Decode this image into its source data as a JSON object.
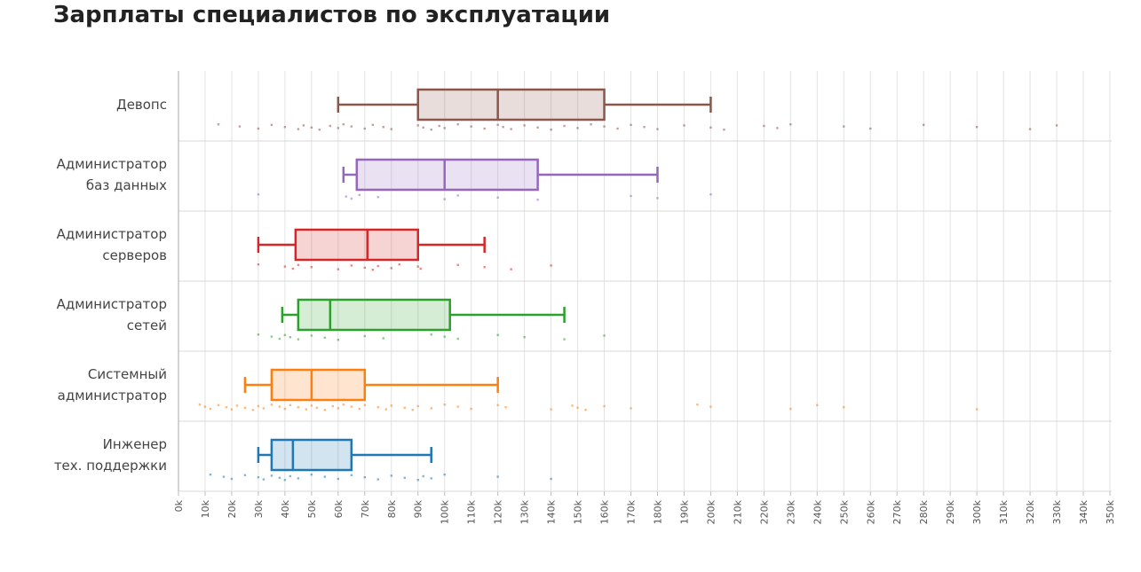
{
  "chart_data": {
    "type": "boxplot",
    "title": "Зарплаты специалистов по эксплуатации",
    "categories": [
      "Девопс",
      "Администратор\nбаз данных",
      "Администратор\nсерверов",
      "Администратор\nсетей",
      "Системный\nадминистратор",
      "Инженер\nтех. поддержки"
    ],
    "xlim": [
      0,
      350
    ],
    "xticks": [
      {
        "value": 0,
        "label": "0k"
      },
      {
        "value": 10,
        "label": "10k"
      },
      {
        "value": 20,
        "label": "20k"
      },
      {
        "value": 30,
        "label": "30k"
      },
      {
        "value": 40,
        "label": "40k"
      },
      {
        "value": 50,
        "label": "50k"
      },
      {
        "value": 60,
        "label": "60k"
      },
      {
        "value": 70,
        "label": "70k"
      },
      {
        "value": 80,
        "label": "80k"
      },
      {
        "value": 90,
        "label": "90k"
      },
      {
        "value": 100,
        "label": "100k"
      },
      {
        "value": 110,
        "label": "110k"
      },
      {
        "value": 120,
        "label": "120k"
      },
      {
        "value": 130,
        "label": "130k"
      },
      {
        "value": 140,
        "label": "140k"
      },
      {
        "value": 150,
        "label": "150k"
      },
      {
        "value": 160,
        "label": "160k"
      },
      {
        "value": 170,
        "label": "170k"
      },
      {
        "value": 180,
        "label": "180k"
      },
      {
        "value": 190,
        "label": "190k"
      },
      {
        "value": 200,
        "label": "200k"
      },
      {
        "value": 210,
        "label": "210k"
      },
      {
        "value": 220,
        "label": "220k"
      },
      {
        "value": 230,
        "label": "230k"
      },
      {
        "value": 240,
        "label": "240k"
      },
      {
        "value": 250,
        "label": "250k"
      },
      {
        "value": 260,
        "label": "260k"
      },
      {
        "value": 270,
        "label": "270k"
      },
      {
        "value": 280,
        "label": "280k"
      },
      {
        "value": 290,
        "label": "290k"
      },
      {
        "value": 300,
        "label": "300k"
      },
      {
        "value": 310,
        "label": "310k"
      },
      {
        "value": 320,
        "label": "320k"
      },
      {
        "value": 330,
        "label": "330k"
      },
      {
        "value": 340,
        "label": "340k"
      },
      {
        "value": 350,
        "label": "350k"
      }
    ],
    "grid": true,
    "series": [
      {
        "color": "#8c564b",
        "low": 60,
        "q1": 90,
        "median": 120,
        "q3": 160,
        "high": 200,
        "points": [
          15,
          23,
          30,
          35,
          40,
          45,
          47,
          50,
          53,
          57,
          60,
          62,
          65,
          70,
          73,
          77,
          80,
          90,
          92,
          95,
          98,
          100,
          105,
          110,
          115,
          120,
          122,
          125,
          130,
          135,
          140,
          145,
          150,
          155,
          160,
          165,
          170,
          175,
          180,
          190,
          200,
          205,
          220,
          225,
          230,
          250,
          260,
          280,
          300,
          320,
          330
        ]
      },
      {
        "color": "#9467bd",
        "low": 62,
        "q1": 67,
        "median": 100,
        "q3": 135,
        "high": 180,
        "points": [
          30,
          63,
          65,
          68,
          75,
          100,
          105,
          120,
          135,
          170,
          180,
          200
        ]
      },
      {
        "color": "#d62728",
        "low": 30,
        "q1": 44,
        "median": 71,
        "q3": 90,
        "high": 115,
        "points": [
          30,
          40,
          43,
          45,
          50,
          60,
          65,
          70,
          73,
          75,
          80,
          83,
          90,
          91,
          105,
          115,
          125,
          140
        ]
      },
      {
        "color": "#2ca02c",
        "low": 39,
        "q1": 45,
        "median": 57,
        "q3": 102,
        "high": 145,
        "points": [
          30,
          35,
          38,
          40,
          42,
          45,
          50,
          55,
          60,
          70,
          77,
          95,
          100,
          105,
          120,
          130,
          145,
          160
        ]
      },
      {
        "color": "#ff7f0e",
        "low": 25,
        "q1": 35,
        "median": 50,
        "q3": 70,
        "high": 120,
        "points": [
          8,
          10,
          12,
          15,
          18,
          20,
          22,
          25,
          28,
          30,
          32,
          35,
          38,
          40,
          42,
          45,
          48,
          50,
          52,
          55,
          58,
          60,
          62,
          65,
          68,
          70,
          75,
          78,
          80,
          85,
          88,
          90,
          95,
          100,
          105,
          110,
          120,
          123,
          140,
          148,
          150,
          153,
          160,
          170,
          195,
          200,
          230,
          240,
          250,
          300
        ]
      },
      {
        "color": "#1f77b4",
        "low": 30,
        "q1": 35,
        "median": 43,
        "q3": 65,
        "high": 95,
        "points": [
          12,
          17,
          20,
          25,
          30,
          32,
          35,
          38,
          40,
          42,
          45,
          50,
          55,
          60,
          65,
          70,
          75,
          80,
          85,
          90,
          92,
          95,
          100,
          120,
          140
        ]
      }
    ]
  }
}
